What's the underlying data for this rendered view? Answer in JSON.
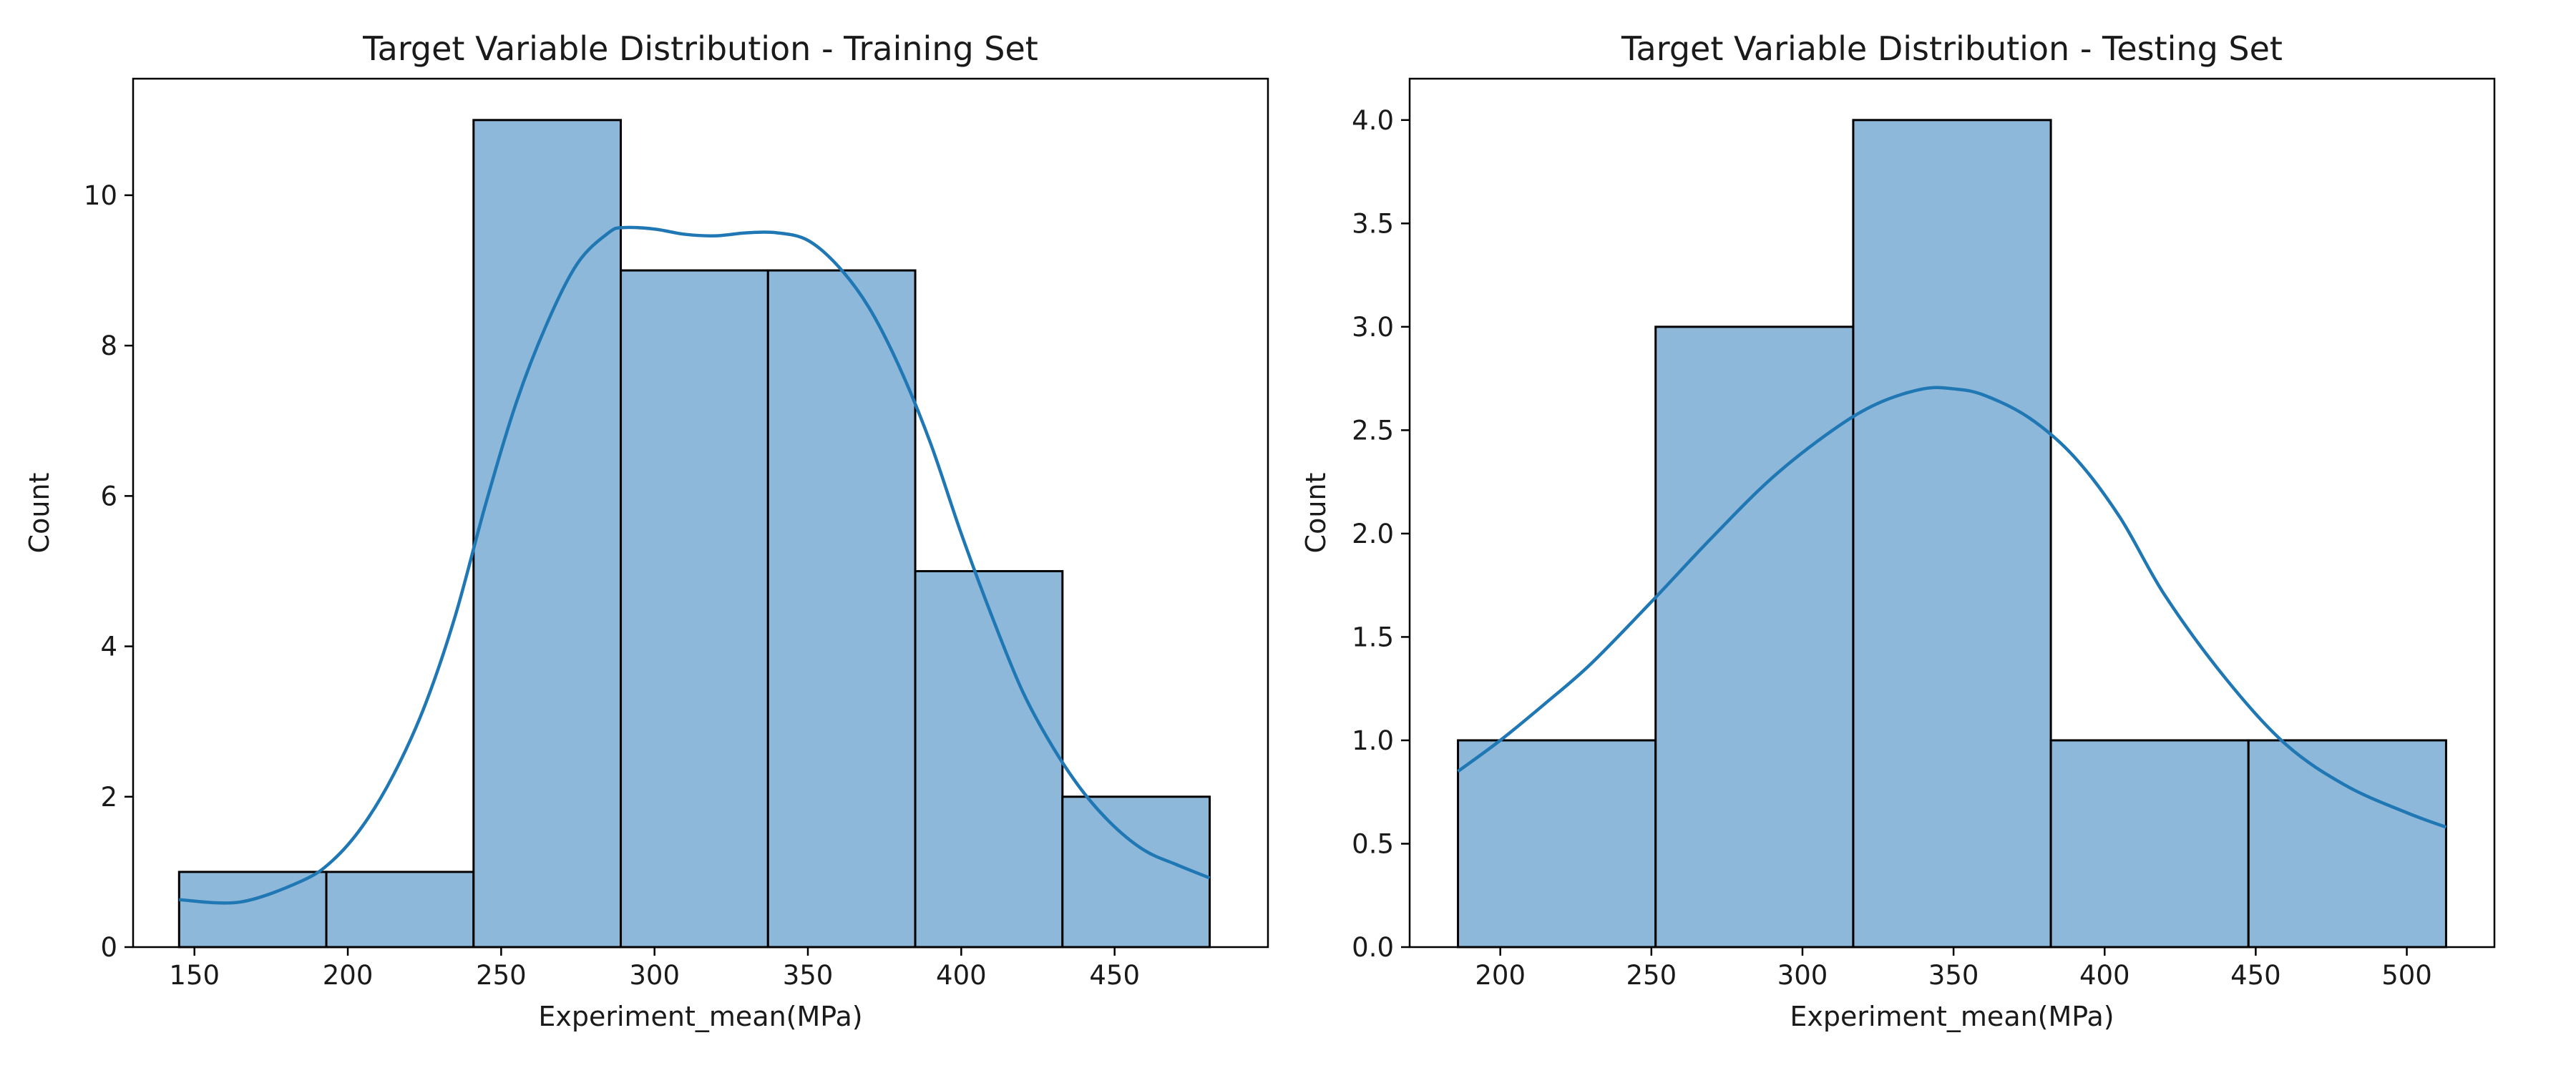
{
  "chart_data": [
    {
      "type": "bar",
      "title": "Target Variable Distribution - Training Set",
      "xlabel": "Experiment_mean(MPa)",
      "ylabel": "Count",
      "bin_edges": [
        145.0,
        193.0,
        241.0,
        289.0,
        337.0,
        385.0,
        433.0,
        481.0
      ],
      "values": [
        1,
        1,
        11,
        9,
        9,
        5,
        2
      ],
      "kde": {
        "x": [
          145,
          165,
          185,
          195,
          205,
          215,
          225,
          235,
          245,
          255,
          265,
          275,
          285,
          290,
          300,
          310,
          320,
          330,
          340,
          350,
          360,
          370,
          380,
          390,
          400,
          410,
          420,
          430,
          440,
          450,
          460,
          470,
          481
        ],
        "y": [
          0.63,
          0.6,
          0.88,
          1.15,
          1.62,
          2.3,
          3.2,
          4.4,
          5.9,
          7.25,
          8.3,
          9.1,
          9.5,
          9.57,
          9.55,
          9.48,
          9.46,
          9.5,
          9.5,
          9.4,
          9.05,
          8.5,
          7.7,
          6.7,
          5.5,
          4.4,
          3.4,
          2.65,
          2.05,
          1.6,
          1.28,
          1.1,
          0.92
        ]
      },
      "xlim": [
        130,
        500
      ],
      "ylim": [
        0,
        11.55
      ],
      "xticks": [
        150,
        200,
        250,
        300,
        350,
        400,
        450
      ],
      "yticks": [
        0,
        2,
        4,
        6,
        8,
        10
      ],
      "ytick_labels": [
        "0",
        "2",
        "4",
        "6",
        "8",
        "10"
      ],
      "grid": false,
      "bar_color": "#8db8da",
      "line_color": "#1f77b4"
    },
    {
      "type": "bar",
      "title": "Target Variable Distribution - Testing Set",
      "xlabel": "Experiment_mean(MPa)",
      "ylabel": "Count",
      "bin_edges": [
        186.0,
        251.4,
        316.8,
        382.2,
        447.6,
        513.0
      ],
      "values": [
        1,
        3,
        4,
        1,
        1
      ],
      "kde": {
        "x": [
          186,
          200,
          215,
          230,
          250,
          270,
          290,
          310,
          325,
          340,
          350,
          360,
          375,
          390,
          405,
          420,
          440,
          460,
          480,
          500,
          513
        ],
        "y": [
          0.85,
          1.0,
          1.18,
          1.37,
          1.67,
          1.98,
          2.27,
          2.5,
          2.63,
          2.7,
          2.7,
          2.67,
          2.56,
          2.37,
          2.08,
          1.7,
          1.3,
          0.98,
          0.78,
          0.65,
          0.58
        ]
      },
      "xlim": [
        170,
        529
      ],
      "ylim": [
        0,
        4.2
      ],
      "xticks": [
        200,
        250,
        300,
        350,
        400,
        450,
        500
      ],
      "yticks": [
        0,
        0.5,
        1.0,
        1.5,
        2.0,
        2.5,
        3.0,
        3.5,
        4.0
      ],
      "ytick_labels": [
        "0.0",
        "0.5",
        "1.0",
        "1.5",
        "2.0",
        "2.5",
        "3.0",
        "3.5",
        "4.0"
      ],
      "grid": false,
      "bar_color": "#8db8da",
      "line_color": "#1f77b4"
    }
  ]
}
